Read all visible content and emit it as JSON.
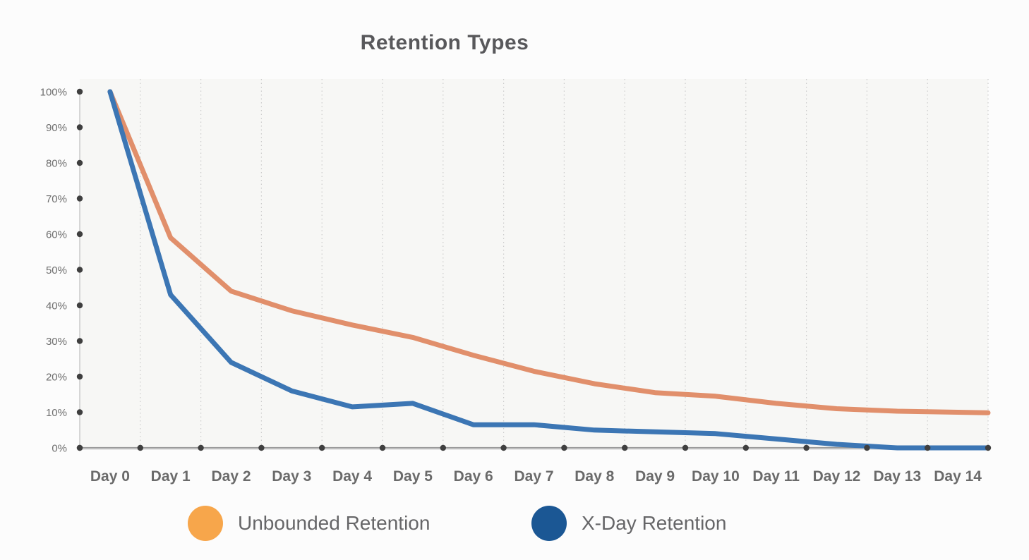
{
  "page": {
    "background": "#FCFCFC"
  },
  "chart_data": {
    "type": "line",
    "title": "Retention Types",
    "xlabel": "",
    "ylabel": "",
    "categories": [
      "Day 0",
      "Day 1",
      "Day 2",
      "Day 3",
      "Day 4",
      "Day 5",
      "Day 6",
      "Day 7",
      "Day 8",
      "Day 9",
      "Day 10",
      "Day 11",
      "Day 12",
      "Day 13",
      "Day 14"
    ],
    "y_tick_labels": [
      "100%",
      "90%",
      "80%",
      "70%",
      "60%",
      "50%",
      "40%",
      "30%",
      "20%",
      "10%",
      "0%"
    ],
    "ylim": [
      0,
      100
    ],
    "grid": "vertical-dotted",
    "legend_position": "bottom",
    "series": [
      {
        "name": "Unbounded Retention",
        "line_color": "#E18F6B",
        "legend_dot_color": "#F7A64B",
        "values": [
          100,
          59,
          44,
          38.5,
          34.5,
          31,
          26,
          21.5,
          18,
          15.5,
          14.5,
          12.5,
          11,
          10.3,
          10
        ]
      },
      {
        "name": "X-Day Retention",
        "line_color": "#3C76B4",
        "legend_dot_color": "#1B5794",
        "values": [
          100,
          43,
          24,
          16,
          11.5,
          12.5,
          6.5,
          6.5,
          5,
          4.5,
          4,
          2.5,
          1,
          0,
          0
        ]
      }
    ],
    "colors": {
      "axis_dot": "#3F3F3F",
      "x_axis_line": "#9A9A9A",
      "y_axis_line": "#C9C9C9",
      "gridline": "#CBCBCB",
      "plot_background": "#F7F7F5",
      "tick_label": "#6E6E6E",
      "x_label": "#6A6A6A",
      "title": "#58585B"
    }
  }
}
